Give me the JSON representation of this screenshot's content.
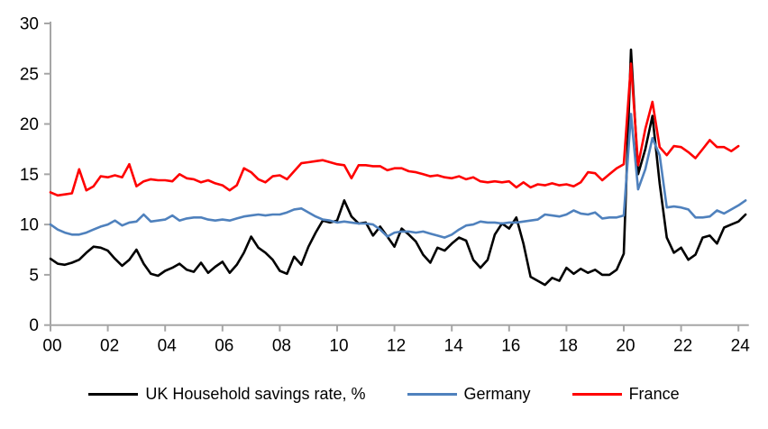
{
  "chart_data": {
    "type": "line",
    "title": "",
    "xlabel": "",
    "ylabel": "",
    "frequency": "quarterly",
    "x_start_year": 2000,
    "x_step_years": 0.25,
    "x_end_year": 2024.25,
    "ylim": [
      0,
      30
    ],
    "ytick_step": 5,
    "ytick_labels": [
      "0",
      "5",
      "10",
      "15",
      "20",
      "25",
      "30"
    ],
    "xtick_labels": [
      "00",
      "02",
      "04",
      "06",
      "08",
      "10",
      "12",
      "14",
      "16",
      "18",
      "20",
      "22",
      "24"
    ],
    "xtick_interval_years": 2,
    "grid": false,
    "legend_position": "bottom",
    "axis_color": "#a6a6a6",
    "series": [
      {
        "name": "UK Household savings rate, %",
        "color": "#000000",
        "values": [
          6.6,
          6.1,
          6.0,
          6.2,
          6.5,
          7.2,
          7.8,
          7.7,
          7.4,
          6.6,
          5.9,
          6.5,
          7.5,
          6.1,
          5.1,
          4.9,
          5.4,
          5.7,
          6.1,
          5.5,
          5.3,
          6.2,
          5.2,
          5.8,
          6.3,
          5.2,
          6.0,
          7.2,
          8.8,
          7.7,
          7.2,
          6.5,
          5.4,
          5.1,
          6.8,
          6.0,
          7.8,
          9.2,
          10.4,
          10.2,
          10.4,
          12.4,
          10.8,
          10.1,
          10.2,
          8.9,
          9.8,
          8.8,
          7.8,
          9.6,
          9.0,
          8.3,
          7.0,
          6.2,
          7.7,
          7.4,
          8.1,
          8.7,
          8.4,
          6.5,
          5.7,
          6.5,
          9.0,
          10.1,
          9.6,
          10.7,
          8.1,
          4.8,
          4.4,
          4.0,
          4.7,
          4.4,
          5.7,
          5.1,
          5.6,
          5.2,
          5.5,
          5.0,
          5.0,
          5.5,
          7.1,
          27.4,
          15.0,
          17.5,
          20.8,
          14.1,
          8.7,
          7.2,
          7.7,
          6.5,
          7.0,
          8.7,
          8.9,
          8.1,
          9.7,
          10.0,
          10.3,
          11.0
        ]
      },
      {
        "name": "Germany",
        "color": "#4f81bd",
        "values": [
          10.0,
          9.5,
          9.2,
          9.0,
          9.0,
          9.2,
          9.5,
          9.8,
          10.0,
          10.4,
          9.9,
          10.2,
          10.3,
          11.0,
          10.3,
          10.4,
          10.5,
          10.9,
          10.4,
          10.6,
          10.7,
          10.7,
          10.5,
          10.4,
          10.5,
          10.4,
          10.6,
          10.8,
          10.9,
          11.0,
          10.9,
          11.0,
          11.0,
          11.2,
          11.5,
          11.6,
          11.2,
          10.8,
          10.5,
          10.4,
          10.2,
          10.3,
          10.2,
          10.1,
          10.1,
          10.0,
          9.5,
          8.8,
          9.2,
          9.3,
          9.3,
          9.2,
          9.3,
          9.1,
          8.9,
          8.7,
          9.0,
          9.5,
          9.9,
          10.0,
          10.3,
          10.2,
          10.2,
          10.1,
          10.2,
          10.2,
          10.3,
          10.4,
          10.5,
          11.0,
          10.9,
          10.8,
          11.0,
          11.4,
          11.1,
          11.0,
          11.2,
          10.6,
          10.7,
          10.7,
          10.9,
          21.0,
          13.5,
          15.5,
          18.6,
          16.9,
          11.7,
          11.8,
          11.7,
          11.5,
          10.7,
          10.7,
          10.8,
          11.4,
          11.1,
          11.5,
          11.9,
          12.4
        ]
      },
      {
        "name": "France",
        "color": "#ff0000",
        "values": [
          13.2,
          12.9,
          13.0,
          13.1,
          15.5,
          13.4,
          13.8,
          14.8,
          14.7,
          14.9,
          14.7,
          16.0,
          13.8,
          14.3,
          14.5,
          14.4,
          14.4,
          14.3,
          15.0,
          14.6,
          14.5,
          14.2,
          14.4,
          14.1,
          13.9,
          13.4,
          13.9,
          15.6,
          15.2,
          14.5,
          14.2,
          14.8,
          14.9,
          14.5,
          15.3,
          16.1,
          16.2,
          16.3,
          16.4,
          16.2,
          16.0,
          15.9,
          14.6,
          15.9,
          15.9,
          15.8,
          15.8,
          15.4,
          15.6,
          15.6,
          15.3,
          15.2,
          15.0,
          14.8,
          14.9,
          14.7,
          14.6,
          14.8,
          14.5,
          14.7,
          14.3,
          14.2,
          14.3,
          14.2,
          14.3,
          13.7,
          14.2,
          13.7,
          14.0,
          13.9,
          14.1,
          13.9,
          14.0,
          13.8,
          14.2,
          15.2,
          15.1,
          14.4,
          15.0,
          15.6,
          16.0,
          26.0,
          15.9,
          19.5,
          22.2,
          17.7,
          16.9,
          17.8,
          17.7,
          17.2,
          16.6,
          17.5,
          18.4,
          17.7,
          17.7,
          17.3,
          17.8
        ]
      }
    ]
  }
}
